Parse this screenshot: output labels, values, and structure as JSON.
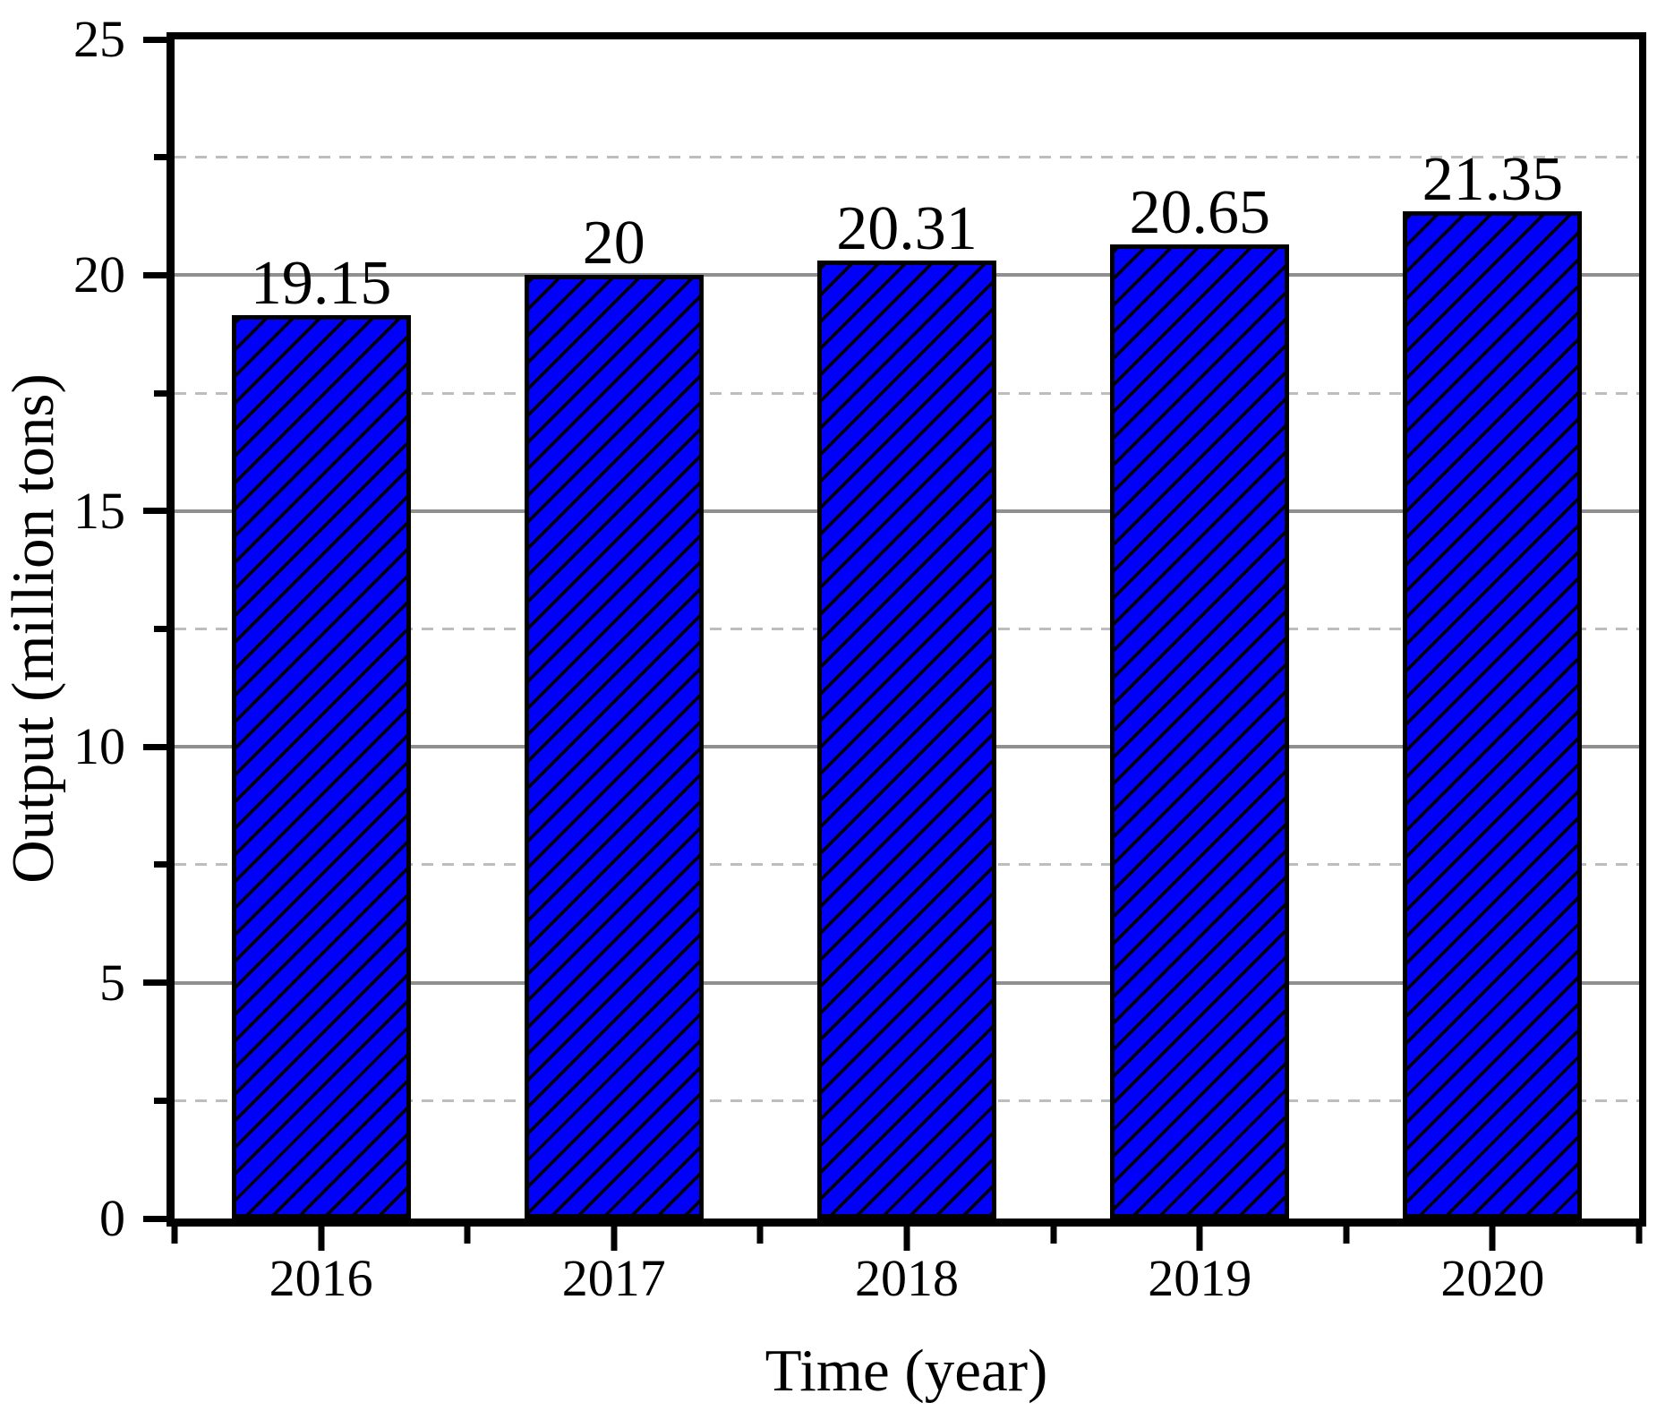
{
  "chart_data": {
    "type": "bar",
    "title": "",
    "categories": [
      "2016",
      "2017",
      "2018",
      "2019",
      "2020"
    ],
    "values": [
      19.15,
      20,
      20.31,
      20.65,
      21.35
    ],
    "bar_labels": [
      "19.15",
      "20",
      "20.31",
      "20.65",
      "21.35"
    ],
    "xlabel": "Time (year)",
    "ylabel": "Output (million tons)",
    "ylim": [
      0,
      25
    ],
    "ytick_values": [
      0,
      5,
      10,
      15,
      20,
      25
    ],
    "ytick_labels": [
      "0",
      "5",
      "10",
      "15",
      "20",
      "25"
    ],
    "yminor_values": [
      2.5,
      7.5,
      12.5,
      17.5,
      22.5
    ],
    "grid": {
      "major": "solid",
      "minor": "dashed",
      "vertical": "off"
    },
    "legend": "none",
    "bar_hatch_style": "diagonal-forward-slash",
    "colors": {
      "bar_fill": "#0101fa",
      "bar_hatch": "#000000",
      "bar_border": "#000000",
      "major_grid": "#909090",
      "minor_grid": "#bdbdbd",
      "axis": "#000000",
      "text": "#000000",
      "background": "#ffffff"
    }
  }
}
